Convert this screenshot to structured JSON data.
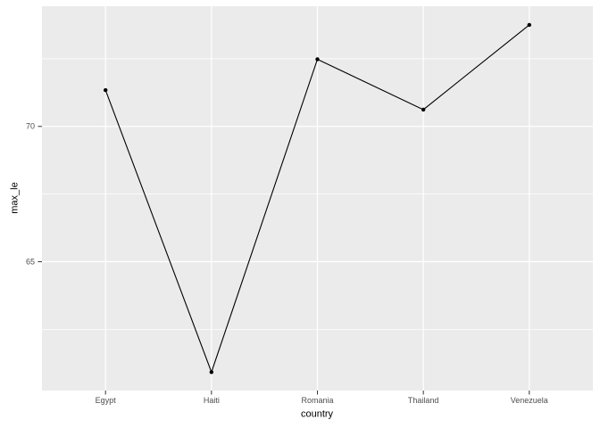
{
  "figure": {
    "background": "#ffffff",
    "panel_background": "#ebebeb",
    "grid_color": "#ffffff",
    "axis_tick_color": "#333333",
    "tick_label_color": "#4d4d4d",
    "axis_title_color": "#000000",
    "line_color": "#000000",
    "point_color": "#000000"
  },
  "chart_data": {
    "type": "line",
    "title": "",
    "xlabel": "country",
    "ylabel": "max_le",
    "categories": [
      "Egypt",
      "Haiti",
      "Romania",
      "Thailand",
      "Venezuela"
    ],
    "series": [
      {
        "name": "max_le",
        "values": [
          71.34,
          60.92,
          72.48,
          70.62,
          73.75
        ]
      }
    ],
    "y_major_ticks": [
      65,
      70
    ],
    "y_tick_labels": [
      "65",
      "70"
    ],
    "y_minor_gridlines": [
      62.5,
      67.5,
      72.5
    ],
    "ylim": [
      60.24,
      74.44
    ],
    "grid": true,
    "legend": "none",
    "style": "ggplot2-grey-theme"
  }
}
